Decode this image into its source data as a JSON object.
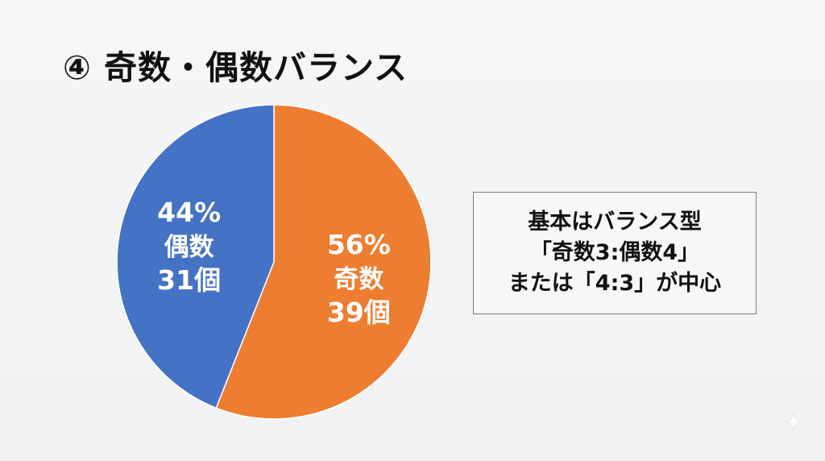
{
  "title": "④ 奇数・偶数バランス",
  "chart_data": {
    "type": "pie",
    "slices": [
      {
        "category": "奇数",
        "percent": 56,
        "percent_label": "56%",
        "count_label": "39個",
        "color": "#ed7d31"
      },
      {
        "category": "偶数",
        "percent": 44,
        "percent_label": "44%",
        "count_label": "31個",
        "color": "#4472c4"
      }
    ]
  },
  "note": {
    "lines": [
      "基本はバランス型",
      "「奇数3:偶数4」",
      "または「4:3」が中心"
    ]
  },
  "icons": {
    "corner": "sparkle-icon"
  }
}
